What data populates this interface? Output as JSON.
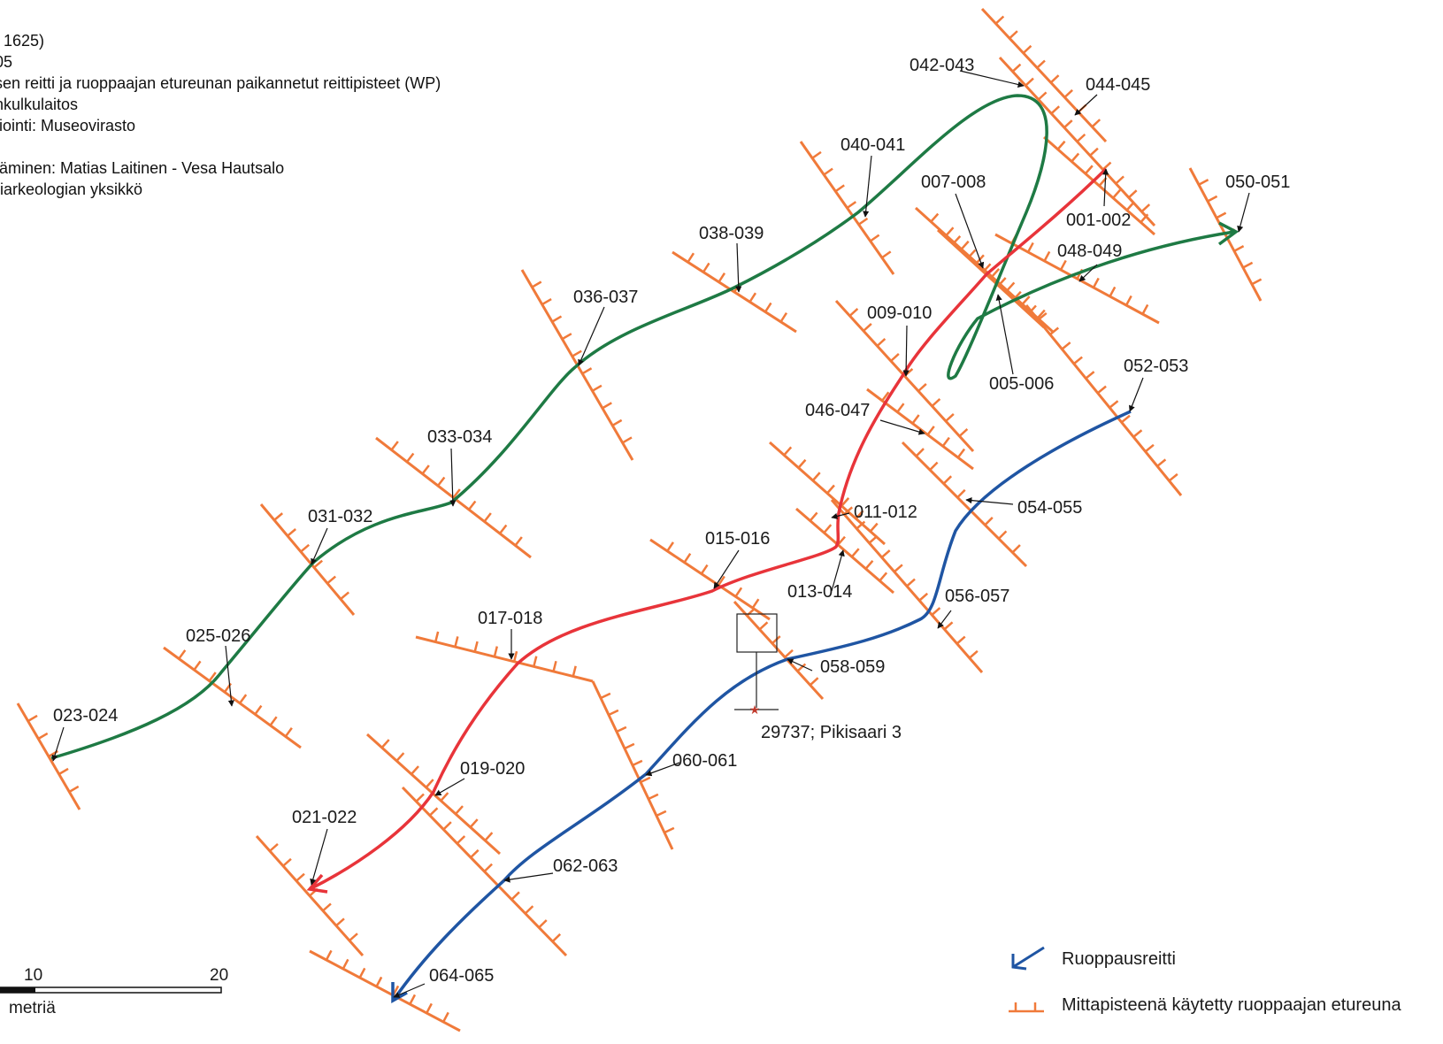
{
  "header": {
    "lines": [
      ". 1625)",
      "05",
      "sen reitti ja ruoppaajan etureunan paikannetut reittipisteet (WP)",
      "nkulkulaitos",
      "tiointi: Museovirasto",
      "",
      "täminen: Matias Laitinen - Vesa Hautsalo",
      "riarkeologian yksikkö"
    ]
  },
  "colors": {
    "green_route": "#1e7a44",
    "red_route": "#e8343a",
    "blue_route": "#1f55a3",
    "dredge_front": "#f07a3a",
    "arrow": "#111111"
  },
  "waypoints": [
    "023-024",
    "025-026",
    "031-032",
    "033-034",
    "036-037",
    "038-039",
    "040-041",
    "042-043",
    "044-045",
    "050-051",
    "001-002",
    "007-008",
    "048-049",
    "005-006",
    "009-010",
    "046-047",
    "011-012",
    "013-014",
    "015-016",
    "017-018",
    "019-020",
    "021-022",
    "052-053",
    "054-055",
    "056-057",
    "058-059",
    "060-061",
    "062-063",
    "064-065"
  ],
  "site": {
    "label": "29737; Pikisaari 3",
    "icon": "star-icon"
  },
  "scale": {
    "ticks": [
      "10",
      "20"
    ],
    "unit": "metriä"
  },
  "legend": {
    "route": {
      "label": "Ruoppausreitti",
      "icon": "route-arrow-icon"
    },
    "front": {
      "label": "Mittapisteenä käytetty ruoppaajan etureuna",
      "icon": "dredge-front-icon"
    }
  }
}
